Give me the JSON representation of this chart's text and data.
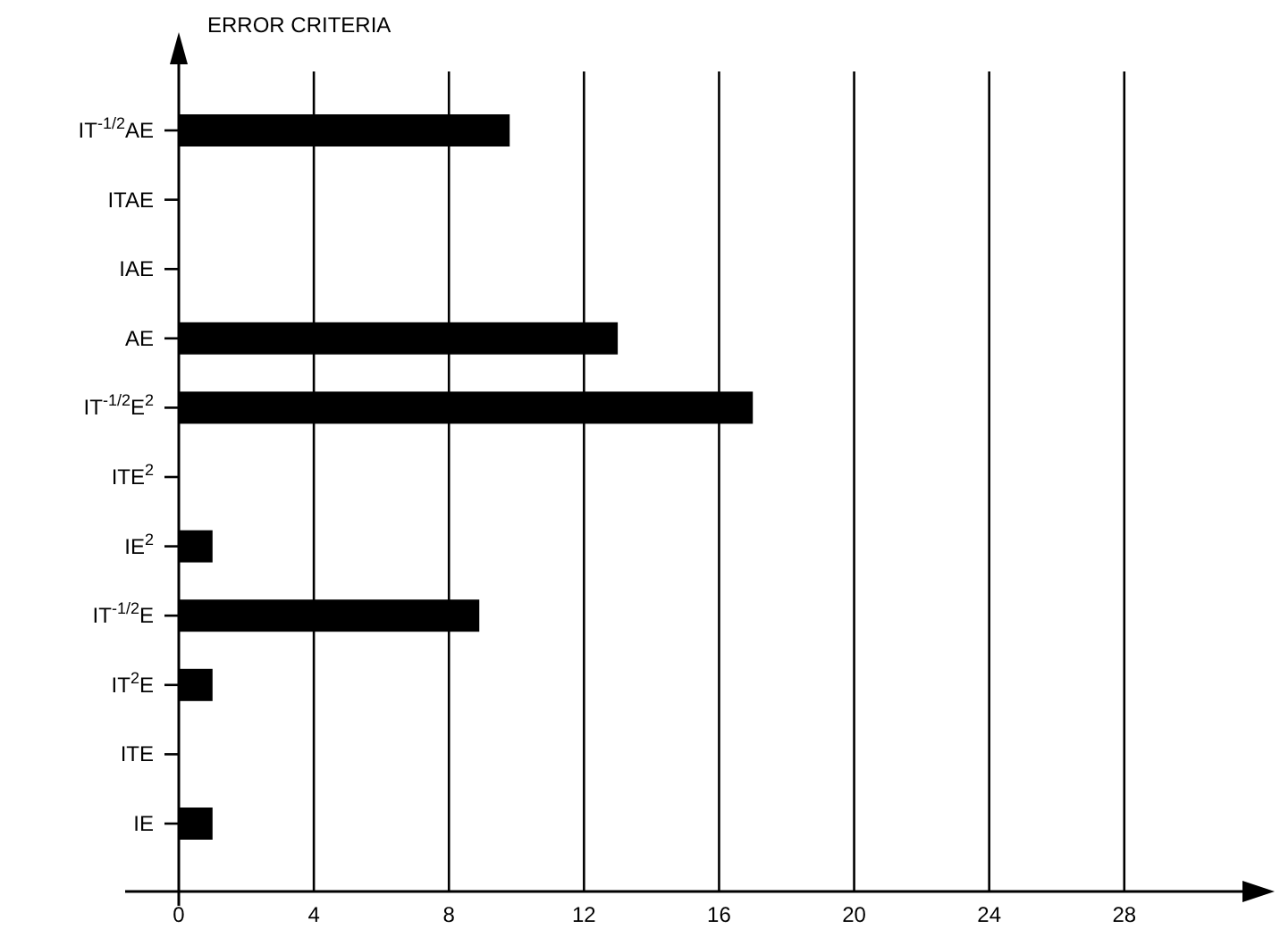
{
  "chart_data": {
    "type": "bar",
    "orientation": "horizontal",
    "ylabel": "ERROR CRITERIA",
    "categories": [
      "IT$^{-1/2}$AE",
      "ITAE",
      "IAE",
      "AE",
      "IT$^{-1/2}$E$^{2}$",
      "ITE$^{2}$",
      "IE$^{2}$",
      "IT$^{-1/2}$E",
      "IT$^{2}$E",
      "ITE",
      "IE"
    ],
    "values": [
      9.8,
      0,
      0,
      13,
      17,
      0,
      1,
      8.9,
      1,
      0,
      1
    ],
    "color": "#000000",
    "xlim": [
      0,
      31.5
    ],
    "xticks": [
      0,
      4,
      8,
      12,
      16,
      20,
      24,
      28
    ],
    "grid": "x"
  }
}
